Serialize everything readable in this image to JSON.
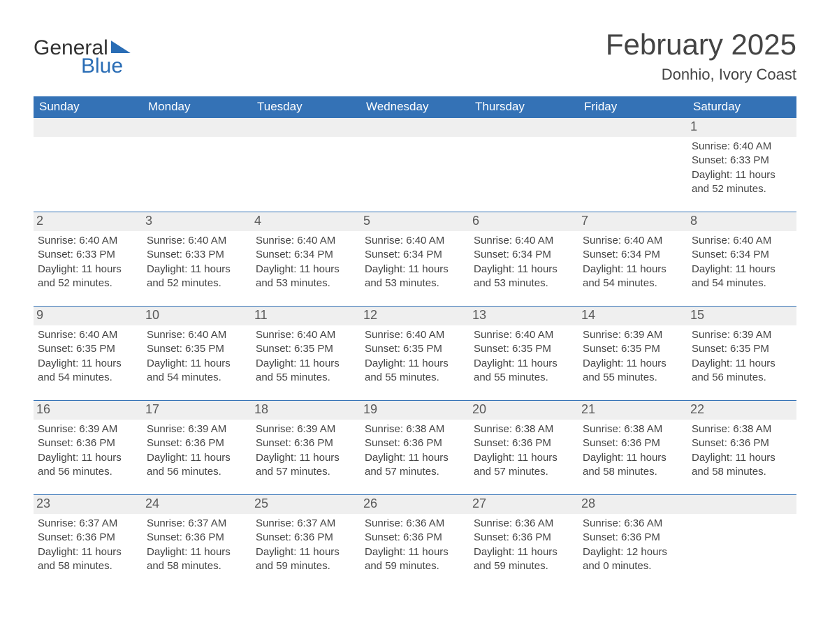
{
  "colors": {
    "brand_blue": "#2a6db5",
    "header_blue": "#3472b6",
    "row_stripe": "#efefef",
    "text": "#444444",
    "bg": "#ffffff"
  },
  "logo": {
    "part1": "General",
    "part2": "Blue"
  },
  "title": "February 2025",
  "location": "Donhio, Ivory Coast",
  "dow": [
    "Sunday",
    "Monday",
    "Tuesday",
    "Wednesday",
    "Thursday",
    "Friday",
    "Saturday"
  ],
  "labels": {
    "sunrise": "Sunrise:",
    "sunset": "Sunset:",
    "daylight": "Daylight:"
  },
  "weeks": [
    [
      null,
      null,
      null,
      null,
      null,
      null,
      {
        "d": "1",
        "sunrise": "6:40 AM",
        "sunset": "6:33 PM",
        "daylight": "11 hours and 52 minutes."
      }
    ],
    [
      {
        "d": "2",
        "sunrise": "6:40 AM",
        "sunset": "6:33 PM",
        "daylight": "11 hours and 52 minutes."
      },
      {
        "d": "3",
        "sunrise": "6:40 AM",
        "sunset": "6:33 PM",
        "daylight": "11 hours and 52 minutes."
      },
      {
        "d": "4",
        "sunrise": "6:40 AM",
        "sunset": "6:34 PM",
        "daylight": "11 hours and 53 minutes."
      },
      {
        "d": "5",
        "sunrise": "6:40 AM",
        "sunset": "6:34 PM",
        "daylight": "11 hours and 53 minutes."
      },
      {
        "d": "6",
        "sunrise": "6:40 AM",
        "sunset": "6:34 PM",
        "daylight": "11 hours and 53 minutes."
      },
      {
        "d": "7",
        "sunrise": "6:40 AM",
        "sunset": "6:34 PM",
        "daylight": "11 hours and 54 minutes."
      },
      {
        "d": "8",
        "sunrise": "6:40 AM",
        "sunset": "6:34 PM",
        "daylight": "11 hours and 54 minutes."
      }
    ],
    [
      {
        "d": "9",
        "sunrise": "6:40 AM",
        "sunset": "6:35 PM",
        "daylight": "11 hours and 54 minutes."
      },
      {
        "d": "10",
        "sunrise": "6:40 AM",
        "sunset": "6:35 PM",
        "daylight": "11 hours and 54 minutes."
      },
      {
        "d": "11",
        "sunrise": "6:40 AM",
        "sunset": "6:35 PM",
        "daylight": "11 hours and 55 minutes."
      },
      {
        "d": "12",
        "sunrise": "6:40 AM",
        "sunset": "6:35 PM",
        "daylight": "11 hours and 55 minutes."
      },
      {
        "d": "13",
        "sunrise": "6:40 AM",
        "sunset": "6:35 PM",
        "daylight": "11 hours and 55 minutes."
      },
      {
        "d": "14",
        "sunrise": "6:39 AM",
        "sunset": "6:35 PM",
        "daylight": "11 hours and 55 minutes."
      },
      {
        "d": "15",
        "sunrise": "6:39 AM",
        "sunset": "6:35 PM",
        "daylight": "11 hours and 56 minutes."
      }
    ],
    [
      {
        "d": "16",
        "sunrise": "6:39 AM",
        "sunset": "6:36 PM",
        "daylight": "11 hours and 56 minutes."
      },
      {
        "d": "17",
        "sunrise": "6:39 AM",
        "sunset": "6:36 PM",
        "daylight": "11 hours and 56 minutes."
      },
      {
        "d": "18",
        "sunrise": "6:39 AM",
        "sunset": "6:36 PM",
        "daylight": "11 hours and 57 minutes."
      },
      {
        "d": "19",
        "sunrise": "6:38 AM",
        "sunset": "6:36 PM",
        "daylight": "11 hours and 57 minutes."
      },
      {
        "d": "20",
        "sunrise": "6:38 AM",
        "sunset": "6:36 PM",
        "daylight": "11 hours and 57 minutes."
      },
      {
        "d": "21",
        "sunrise": "6:38 AM",
        "sunset": "6:36 PM",
        "daylight": "11 hours and 58 minutes."
      },
      {
        "d": "22",
        "sunrise": "6:38 AM",
        "sunset": "6:36 PM",
        "daylight": "11 hours and 58 minutes."
      }
    ],
    [
      {
        "d": "23",
        "sunrise": "6:37 AM",
        "sunset": "6:36 PM",
        "daylight": "11 hours and 58 minutes."
      },
      {
        "d": "24",
        "sunrise": "6:37 AM",
        "sunset": "6:36 PM",
        "daylight": "11 hours and 58 minutes."
      },
      {
        "d": "25",
        "sunrise": "6:37 AM",
        "sunset": "6:36 PM",
        "daylight": "11 hours and 59 minutes."
      },
      {
        "d": "26",
        "sunrise": "6:36 AM",
        "sunset": "6:36 PM",
        "daylight": "11 hours and 59 minutes."
      },
      {
        "d": "27",
        "sunrise": "6:36 AM",
        "sunset": "6:36 PM",
        "daylight": "11 hours and 59 minutes."
      },
      {
        "d": "28",
        "sunrise": "6:36 AM",
        "sunset": "6:36 PM",
        "daylight": "12 hours and 0 minutes."
      },
      null
    ]
  ]
}
